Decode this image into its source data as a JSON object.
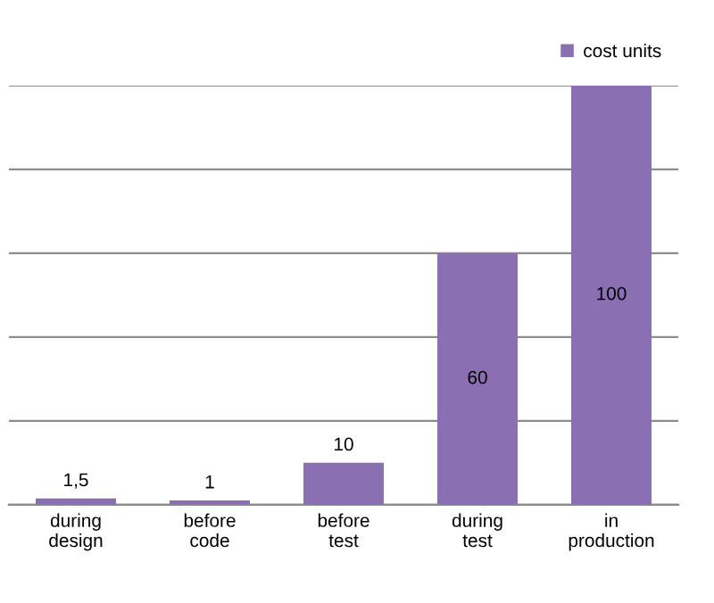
{
  "chart_data": {
    "type": "bar",
    "categories": [
      "during\ndesign",
      "before\ncode",
      "before\ntest",
      "during\ntest",
      "in\nproduction"
    ],
    "series": [
      {
        "name": "cost units",
        "color": "#8b6fb3",
        "values": [
          1.5,
          1,
          10,
          60,
          100
        ],
        "value_labels": [
          "1,5",
          "1",
          "10",
          "60",
          "100"
        ]
      }
    ],
    "ylim": [
      0,
      100
    ],
    "yticks": [
      {
        "value": 0,
        "label": null
      },
      {
        "value": 20,
        "label": null
      },
      {
        "value": 40,
        "label": null
      },
      {
        "value": 60,
        "label": null
      },
      {
        "value": 80,
        "label": null
      },
      {
        "value": 100,
        "label": null
      }
    ],
    "tick_labels": "x",
    "grid": "y",
    "legend": "top right"
  }
}
